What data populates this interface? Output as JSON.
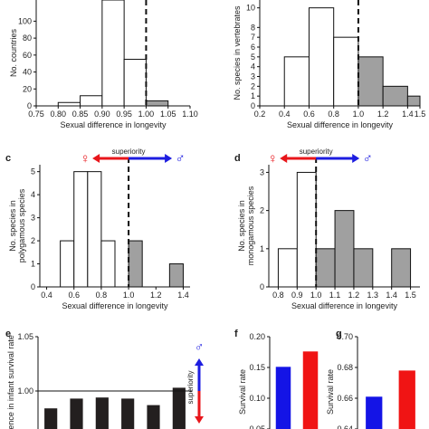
{
  "chart_data": [
    {
      "panel": "a",
      "type": "bar",
      "panel_label": "",
      "xlabel": "Sexual difference in longevity",
      "ylabel": "No. countries",
      "x_ticks": [
        "0.75",
        "0.80",
        "0.85",
        "0.90",
        "0.95",
        "1.00",
        "1.05",
        "1.10"
      ],
      "x_tick_values": [
        0.75,
        0.8,
        0.85,
        0.9,
        0.95,
        1.0,
        1.05,
        1.1
      ],
      "y_ticks": [
        "0",
        "20",
        "40",
        "60",
        "80",
        "100"
      ],
      "y_tick_values": [
        0,
        20,
        40,
        60,
        80,
        100
      ],
      "xlim": [
        0.75,
        1.1
      ],
      "ylim": [
        0,
        125
      ],
      "bins": [
        {
          "x0": 0.8,
          "x1": 0.85,
          "value": 4,
          "color": "#ffffff"
        },
        {
          "x0": 0.85,
          "x1": 0.9,
          "value": 12,
          "color": "#ffffff"
        },
        {
          "x0": 0.9,
          "x1": 0.95,
          "value": 125,
          "color": "#ffffff"
        },
        {
          "x0": 0.95,
          "x1": 1.0,
          "value": 55,
          "color": "#ffffff"
        },
        {
          "x0": 1.0,
          "x1": 1.05,
          "value": 6,
          "color": "#a0a0a0"
        }
      ],
      "dashed_at": 1.0
    },
    {
      "panel": "b",
      "type": "bar",
      "panel_label": "",
      "xlabel": "Sexual difference in longevity",
      "ylabel": "No. species in vertebrates",
      "x_ticks": [
        "0.2",
        "0.4",
        "0.6",
        "0.8",
        "1.0",
        "1.2",
        "1.4",
        "1.5"
      ],
      "x_tick_values": [
        0.2,
        0.4,
        0.6,
        0.8,
        1.0,
        1.2,
        1.4,
        1.5
      ],
      "y_ticks": [
        "0",
        "1",
        "2",
        "3",
        "4",
        "5",
        "6",
        "7",
        "8",
        "10"
      ],
      "y_tick_values": [
        0,
        1,
        2,
        3,
        4,
        5,
        6,
        7,
        8,
        10
      ],
      "xlim": [
        0.2,
        1.5
      ],
      "ylim": [
        0,
        10.8
      ],
      "bins": [
        {
          "x0": 0.4,
          "x1": 0.6,
          "value": 5,
          "color": "#ffffff"
        },
        {
          "x0": 0.6,
          "x1": 0.8,
          "value": 10,
          "color": "#ffffff"
        },
        {
          "x0": 0.8,
          "x1": 1.0,
          "value": 7,
          "color": "#ffffff"
        },
        {
          "x0": 1.0,
          "x1": 1.2,
          "value": 5,
          "color": "#a0a0a0"
        },
        {
          "x0": 1.2,
          "x1": 1.4,
          "value": 2,
          "color": "#a0a0a0"
        },
        {
          "x0": 1.4,
          "x1": 1.5,
          "value": 1,
          "color": "#a0a0a0"
        }
      ],
      "dashed_at": 1.0
    },
    {
      "panel": "c",
      "type": "bar",
      "panel_label": "c",
      "xlabel": "Sexual difference in longevity",
      "ylabel_lines": [
        "No. species in",
        "polygamous species"
      ],
      "x_ticks": [
        "0.4",
        "0.6",
        "0.8",
        "1.0",
        "1.2",
        "1.4"
      ],
      "x_tick_values": [
        0.4,
        0.6,
        0.8,
        1.0,
        1.2,
        1.4
      ],
      "y_ticks": [
        "0",
        "1",
        "2",
        "3",
        "4",
        "5"
      ],
      "y_tick_values": [
        0,
        1,
        2,
        3,
        4,
        5
      ],
      "xlim": [
        0.35,
        1.45
      ],
      "ylim": [
        0,
        5.3
      ],
      "bins": [
        {
          "x0": 0.5,
          "x1": 0.6,
          "value": 2,
          "color": "#ffffff"
        },
        {
          "x0": 0.6,
          "x1": 0.7,
          "value": 5,
          "color": "#ffffff"
        },
        {
          "x0": 0.7,
          "x1": 0.8,
          "value": 5,
          "color": "#ffffff"
        },
        {
          "x0": 0.8,
          "x1": 0.9,
          "value": 2,
          "color": "#ffffff"
        },
        {
          "x0": 1.0,
          "x1": 1.1,
          "value": 2,
          "color": "#a0a0a0"
        },
        {
          "x0": 1.3,
          "x1": 1.4,
          "value": 1,
          "color": "#a0a0a0"
        }
      ],
      "dashed_at": 1.0,
      "arrow": {
        "label": "superiority",
        "female_symbol": "♀",
        "male_symbol": "♂",
        "left_color": "#e8161b",
        "right_color": "#1d1de0"
      }
    },
    {
      "panel": "d",
      "type": "bar",
      "panel_label": "d",
      "xlabel": "Sexual difference in longevity",
      "ylabel_lines": [
        "No. species in",
        "monogamous species"
      ],
      "x_ticks": [
        "0.8",
        "0.9",
        "1.0",
        "1.1",
        "1.2",
        "1.3",
        "1.4",
        "1.5"
      ],
      "x_tick_values": [
        0.8,
        0.9,
        1.0,
        1.1,
        1.2,
        1.3,
        1.4,
        1.5
      ],
      "y_ticks": [
        "0",
        "1",
        "2",
        "3"
      ],
      "y_tick_values": [
        0,
        1,
        2,
        3
      ],
      "xlim": [
        0.75,
        1.55
      ],
      "ylim": [
        0,
        3.2
      ],
      "bins": [
        {
          "x0": 0.8,
          "x1": 0.9,
          "value": 1,
          "color": "#ffffff"
        },
        {
          "x0": 0.9,
          "x1": 1.0,
          "value": 3,
          "color": "#ffffff"
        },
        {
          "x0": 1.0,
          "x1": 1.1,
          "value": 1,
          "color": "#a0a0a0"
        },
        {
          "x0": 1.1,
          "x1": 1.2,
          "value": 2,
          "color": "#a0a0a0"
        },
        {
          "x0": 1.2,
          "x1": 1.3,
          "value": 1,
          "color": "#a0a0a0"
        },
        {
          "x0": 1.4,
          "x1": 1.5,
          "value": 1,
          "color": "#a0a0a0"
        }
      ],
      "dashed_at": 1.0,
      "arrow": {
        "label": "superiority",
        "female_symbol": "♀",
        "male_symbol": "♂",
        "left_color": "#e8161b",
        "right_color": "#1d1de0"
      }
    },
    {
      "panel": "e",
      "type": "bar",
      "panel_label": "e",
      "ylabel": "Difference in infant survival rate",
      "y_ticks": [
        "1.05",
        "1.00"
      ],
      "y_tick_values": [
        1.05,
        1.0
      ],
      "ylim": [
        0.965,
        1.05
      ],
      "values": [
        0.984,
        0.993,
        0.994,
        0.993,
        0.987,
        1.003
      ],
      "bar_color": "#231f1f",
      "ref_line": 1.0,
      "arrow": {
        "label": "superiority",
        "male_symbol": "♂",
        "up_color": "#1d1de0",
        "down_color": "#e8161b"
      }
    },
    {
      "panel": "f",
      "type": "bar",
      "panel_label": "f",
      "ylabel": "Survival rate",
      "y_ticks": [
        "0.20",
        "0.15",
        "0.10",
        "0.05"
      ],
      "y_tick_values": [
        0.2,
        0.15,
        0.1,
        0.05
      ],
      "ylim": [
        0.05,
        0.2
      ],
      "values": [
        0.151,
        0.176
      ],
      "colors": [
        "#1414e6",
        "#f01414"
      ]
    },
    {
      "panel": "g",
      "type": "bar",
      "panel_label": "g",
      "ylabel": "Survival rate",
      "y_ticks": [
        "0.70",
        "0.68",
        "0.66",
        "0.64"
      ],
      "y_tick_values": [
        0.7,
        0.68,
        0.66,
        0.64
      ],
      "ylim": [
        0.64,
        0.7
      ],
      "values": [
        0.661,
        0.678
      ],
      "colors": [
        "#1414e6",
        "#f01414"
      ]
    }
  ]
}
